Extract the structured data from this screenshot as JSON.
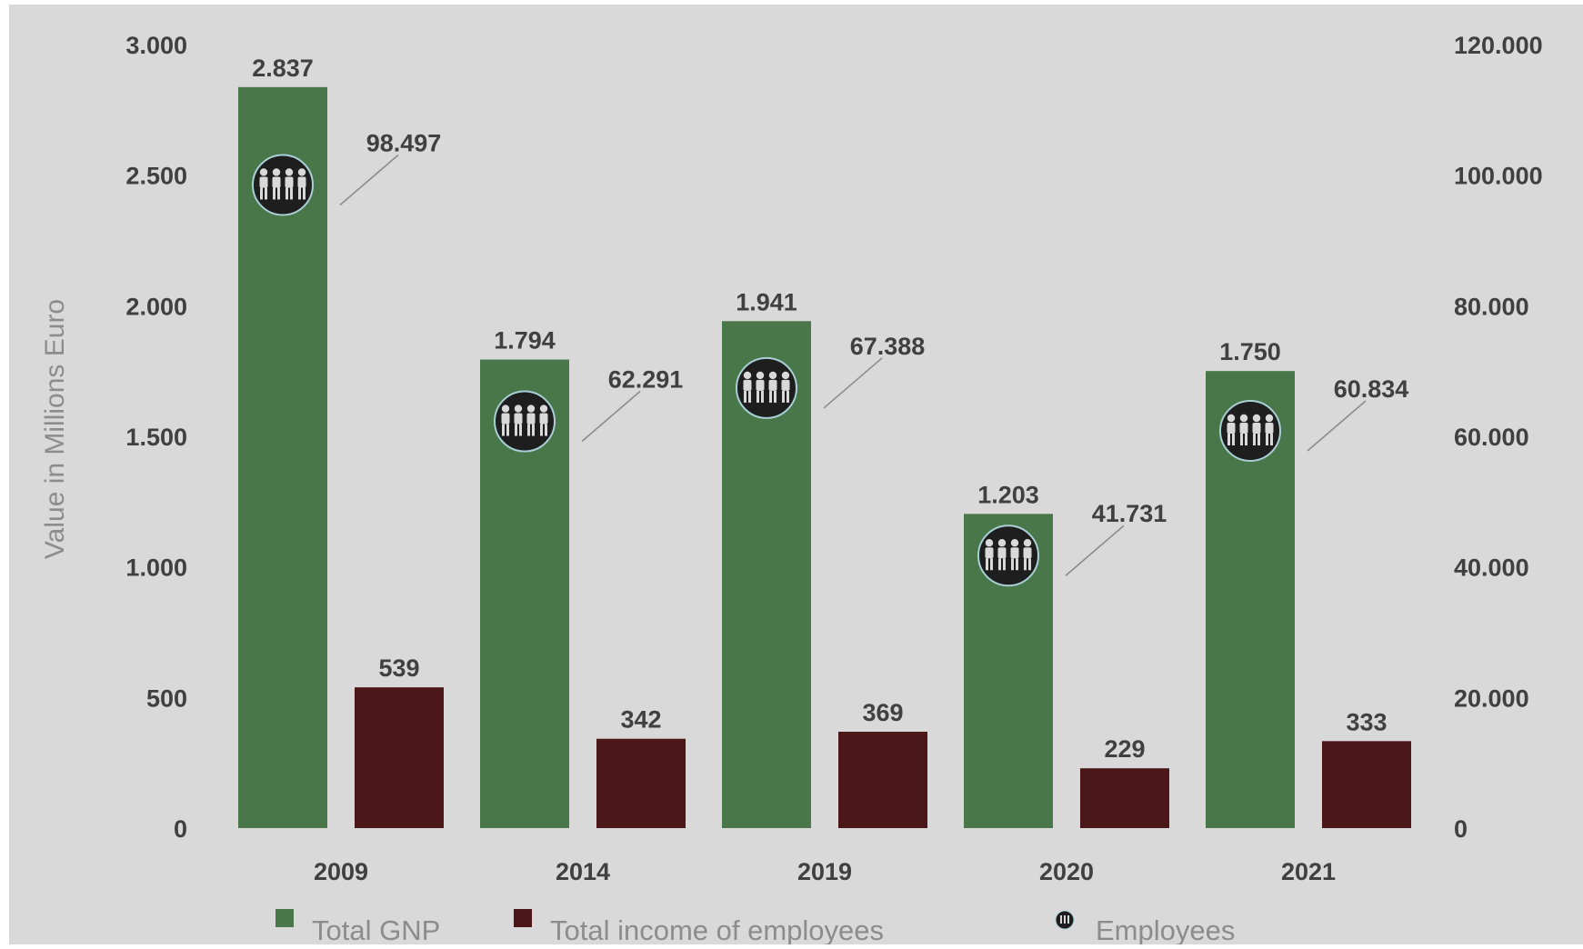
{
  "chart_data": {
    "type": "bar",
    "categories": [
      "2009",
      "2014",
      "2019",
      "2020",
      "2021"
    ],
    "series": [
      {
        "name": "Total GNP",
        "axis": "left",
        "color": "#4a774a",
        "values": [
          2837,
          1794,
          1941,
          1203,
          1750
        ],
        "labels": [
          "2.837",
          "1.794",
          "1.941",
          "1.203",
          "1.750"
        ]
      },
      {
        "name": "Total income of employees",
        "axis": "left",
        "color": "#4b1719",
        "values": [
          539,
          342,
          369,
          229,
          333
        ],
        "labels": [
          "539",
          "342",
          "369",
          "229",
          "333"
        ]
      },
      {
        "name": "Employees",
        "axis": "right",
        "marker": "people-icon",
        "values": [
          98497,
          62291,
          67388,
          41731,
          60834
        ],
        "labels": [
          "98.497",
          "62.291",
          "67.388",
          "41.731",
          "60.834"
        ]
      }
    ],
    "ylabel": "Value  in Millions Euro",
    "ylim": [
      0,
      3000
    ],
    "y_ticks": [
      0,
      500,
      1000,
      1500,
      2000,
      2500,
      3000
    ],
    "y_tick_labels": [
      "0",
      "500",
      "1.000",
      "1.500",
      "2.000",
      "2.500",
      "3.000"
    ],
    "y2lim": [
      0,
      120000
    ],
    "y2_ticks": [
      0,
      20000,
      40000,
      60000,
      80000,
      100000,
      120000
    ],
    "y2_tick_labels": [
      "0",
      "20.000",
      "40.000",
      "60.000",
      "80.000",
      "100.000",
      "120.000"
    ],
    "grid": false,
    "legend_position": "bottom",
    "background": "#d9d9d9",
    "text_color": "#404040",
    "axis_title_color": "#8c8c8c"
  }
}
